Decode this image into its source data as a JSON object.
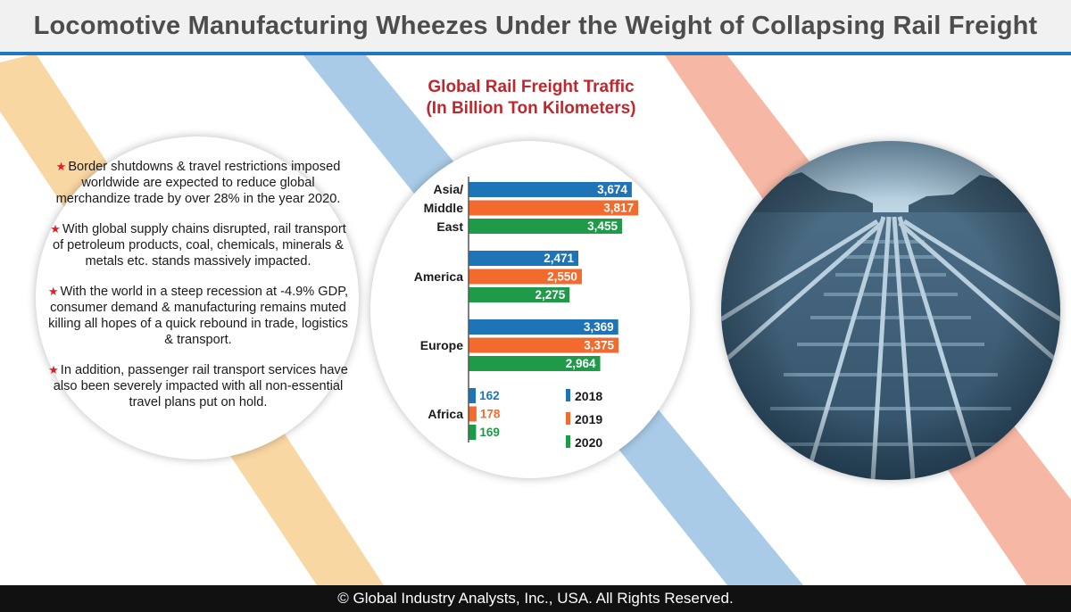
{
  "header": {
    "title": "Locomotive Manufacturing Wheezes Under the Weight of Collapsing Rail Freight"
  },
  "bullets": [
    "Border shutdowns & travel restrictions imposed worldwide are expected to reduce global merchandize trade by over 28% in the year 2020.",
    "With global supply chains disrupted, rail transport of petroleum products, coal, chemicals, minerals & metals etc. stands massively impacted.",
    "With the world in a steep recession at -4.9% GDP, consumer demand & manufacturing remains muted killing all hopes of a quick rebound in trade, logistics & transport.",
    "In addition, passenger rail transport services have also been severely impacted with all non-essential travel plans put on hold."
  ],
  "chart_data": {
    "type": "bar",
    "orientation": "horizontal",
    "title_line1": "Global Rail Freight Traffic",
    "title_line2": "(In Billion Ton Kilometers)",
    "categories": [
      {
        "label_lines": [
          "Asia/",
          "Middle",
          "East"
        ],
        "name": "Asia/Middle East"
      },
      {
        "label_lines": [
          "America"
        ],
        "name": "America"
      },
      {
        "label_lines": [
          "Europe"
        ],
        "name": "Europe"
      },
      {
        "label_lines": [
          "Africa"
        ],
        "name": "Africa"
      }
    ],
    "series": [
      {
        "name": "2018",
        "color": "#1f73b7",
        "values": [
          3674,
          2471,
          3369,
          162
        ],
        "labels": [
          "3,674",
          "2,471",
          "3,369",
          "162"
        ]
      },
      {
        "name": "2019",
        "color": "#f26a2e",
        "values": [
          3817,
          2550,
          3375,
          178
        ],
        "labels": [
          "3,817",
          "2,550",
          "3,375",
          "178"
        ]
      },
      {
        "name": "2020",
        "color": "#1f9a48",
        "values": [
          3455,
          2275,
          2964,
          169
        ],
        "labels": [
          "3,455",
          "2,275",
          "2,964",
          "169"
        ]
      }
    ],
    "legend_position": "bottom-right",
    "xlim": [
      0,
      3817
    ]
  },
  "footer": {
    "copyright": "© Global Industry Analysts, Inc., USA. All Rights Reserved."
  },
  "colors": {
    "accent_blue": "#1f77c0",
    "stripe_orange": "#f9d7a3",
    "stripe_blue": "#a9cbe7",
    "stripe_salmon": "#f6b8a4",
    "title_red": "#c0272d"
  }
}
